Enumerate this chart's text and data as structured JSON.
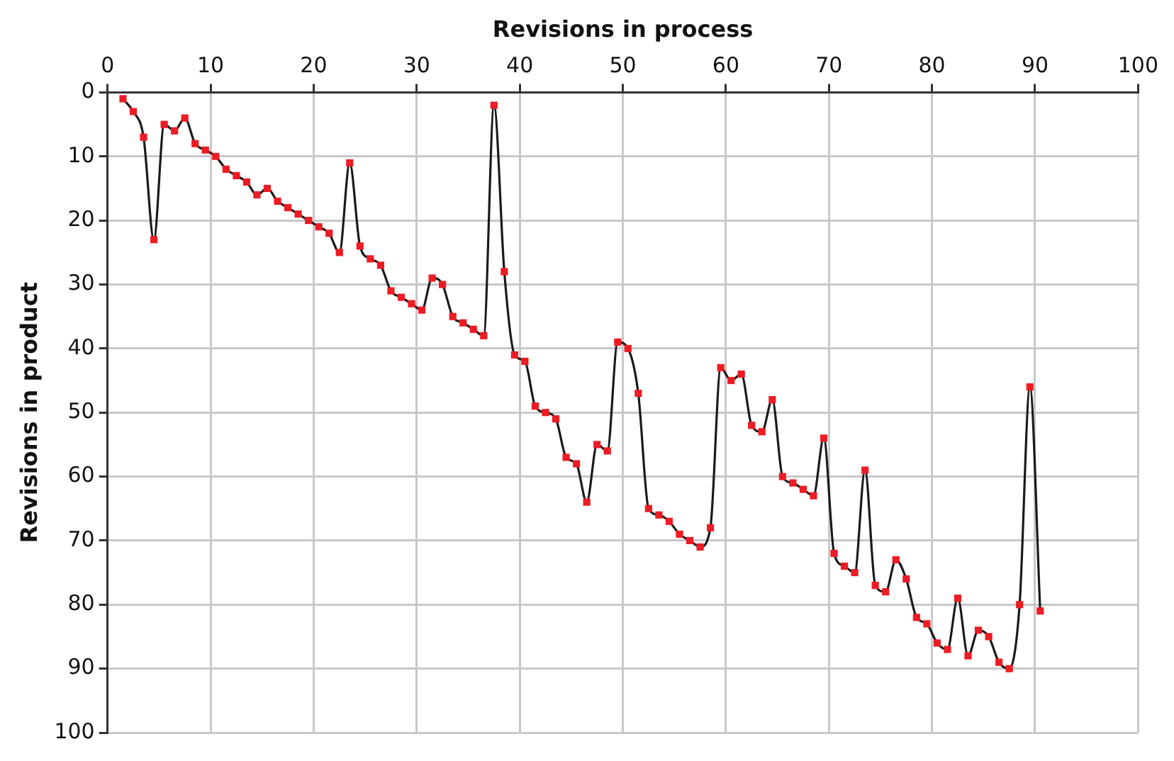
{
  "chart_data": {
    "type": "line",
    "xlabel": "Revisions in process",
    "ylabel": "Revisions in product",
    "xlim": [
      0,
      100
    ],
    "xticks": [
      0,
      10,
      20,
      30,
      40,
      50,
      60,
      70,
      80,
      90,
      100
    ],
    "ylim": [
      100,
      0
    ],
    "yticks": [
      0,
      10,
      20,
      30,
      40,
      50,
      60,
      70,
      80,
      90,
      100
    ],
    "grid": true,
    "legend": false,
    "marker": "square",
    "line_style": "solid",
    "series": [
      {
        "color": "#ed1c24",
        "x": [
          1.5,
          2.5,
          3.5,
          4.5,
          5.5,
          6.5,
          7.5,
          8.5,
          9.5,
          10.5,
          11.5,
          12.5,
          13.5,
          14.5,
          15.5,
          16.5,
          17.5,
          18.5,
          19.5,
          20.5,
          21.5,
          22.5,
          23.5,
          24.5,
          25.5,
          26.5,
          27.5,
          28.5,
          29.5,
          30.5,
          31.5,
          32.5,
          33.5,
          34.5,
          35.5,
          36.5,
          37.5,
          38.5,
          39.5,
          40.5,
          41.5,
          42.5,
          43.5,
          44.5,
          45.5,
          46.5,
          47.5,
          48.5,
          49.5,
          50.5,
          51.5,
          52.5,
          53.5,
          54.5,
          55.5,
          56.5,
          57.5,
          58.5,
          59.5,
          60.5,
          61.5,
          62.5,
          63.5,
          64.5,
          65.5,
          66.5,
          67.5,
          68.5,
          69.5,
          70.5,
          71.5,
          72.5,
          73.5,
          74.5,
          75.5,
          76.5,
          77.5,
          78.5,
          79.5,
          80.5,
          81.5,
          82.5,
          83.5,
          84.5,
          85.5,
          86.5,
          87.5,
          88.5,
          89.5,
          90.5
        ],
        "values": [
          1,
          3,
          7,
          23,
          5,
          6,
          4,
          8,
          9,
          10,
          12,
          13,
          14,
          16,
          15,
          17,
          18,
          19,
          20,
          21,
          22,
          25,
          11,
          24,
          26,
          27,
          31,
          32,
          33,
          34,
          29,
          30,
          35,
          36,
          37,
          38,
          2,
          28,
          41,
          42,
          49,
          50,
          51,
          57,
          58,
          64,
          55,
          56,
          39,
          40,
          47,
          65,
          66,
          67,
          69,
          70,
          71,
          68,
          43,
          45,
          44,
          52,
          53,
          48,
          60,
          61,
          62,
          63,
          54,
          72,
          74,
          75,
          59,
          77,
          78,
          73,
          76,
          82,
          83,
          86,
          87,
          79,
          88,
          84,
          85,
          89,
          90,
          80,
          46,
          81
        ]
      }
    ]
  }
}
